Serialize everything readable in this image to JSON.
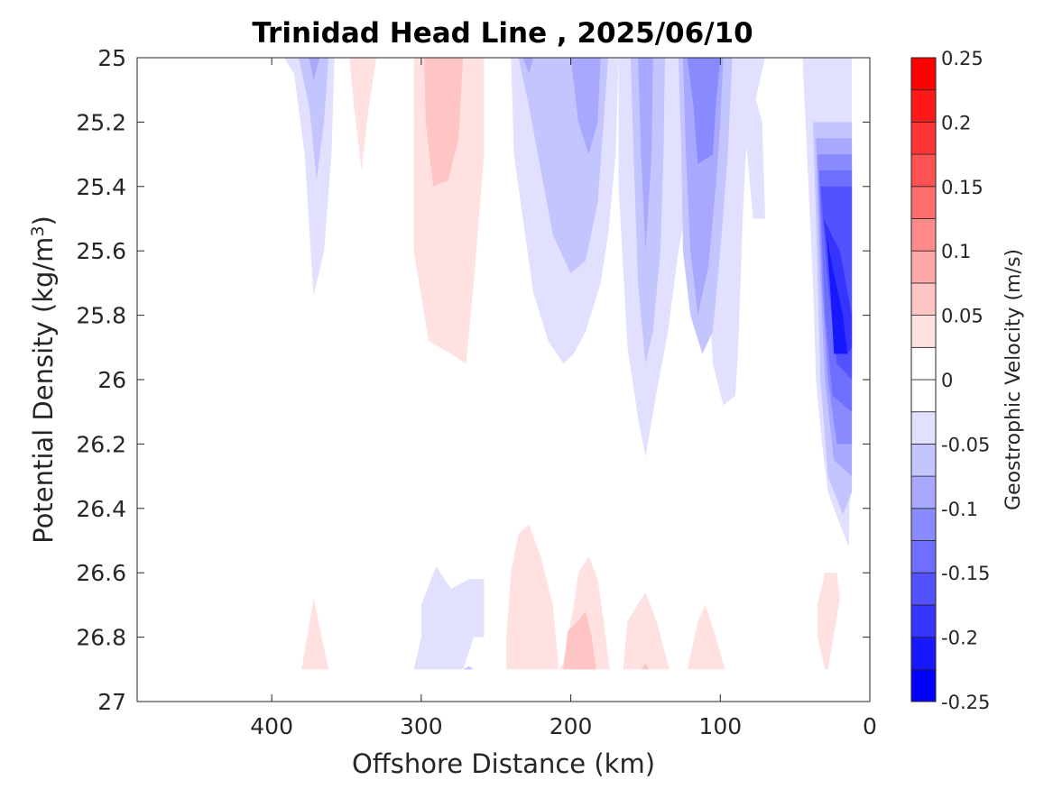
{
  "chart_data": {
    "type": "contour",
    "title": "Trinidad Head Line , 2025/06/10",
    "xlabel": "Offshore Distance (km)",
    "ylabel_main": "Potential Density (kg/m",
    "ylabel_sup": "3",
    "ylabel_end": ")",
    "colorbar_label": "Geostrophic Velocity (m/s)",
    "xlim": [
      490,
      0
    ],
    "x_reversed": true,
    "ylim": [
      25,
      27
    ],
    "y_reversed": true,
    "x_ticks": [
      400,
      300,
      200,
      100,
      0
    ],
    "x_tick_labels": [
      "400",
      "300",
      "200",
      "100",
      "0"
    ],
    "y_ticks": [
      25,
      25.2,
      25.4,
      25.6,
      25.8,
      26,
      26.2,
      26.4,
      26.6,
      26.8,
      27
    ],
    "y_tick_labels": [
      "25",
      "25.2",
      "25.4",
      "25.6",
      "25.8",
      "26",
      "26.2",
      "26.4",
      "26.6",
      "26.8",
      "27"
    ],
    "colorbar_levels": [
      -0.25,
      -0.225,
      -0.2,
      -0.175,
      -0.15,
      -0.125,
      -0.1,
      -0.075,
      -0.05,
      -0.025,
      0,
      0.025,
      0.05,
      0.075,
      0.1,
      0.125,
      0.15,
      0.175,
      0.2,
      0.225,
      0.25
    ],
    "colorbar_ticks": [
      0.25,
      0.2,
      0.15,
      0.1,
      0.05,
      0,
      -0.05,
      -0.1,
      -0.15,
      -0.2,
      -0.25
    ],
    "colorbar_tick_labels": [
      "0.25",
      "0.2",
      "0.15",
      "0.1",
      "0.05",
      "0",
      "-0.05",
      "-0.1",
      "-0.15",
      "-0.2",
      "-0.25"
    ],
    "colors": {
      "neg_1": "#e1e1ff",
      "neg_2": "#c4c4ff",
      "neg_3": "#a8a8ff",
      "neg_4": "#8a8aff",
      "neg_5": "#6e6eff",
      "neg_6": "#5252ff",
      "neg_7": "#3535ff",
      "neg_8": "#1818ff",
      "neg_9": "#0000ff",
      "pos_1": "#ffe1e1",
      "pos_2": "#ffc4c4",
      "pos_3": "#ffa8a8",
      "pos_4": "#ff8a8a",
      "pos_5": "#ff6e6e",
      "pos_6": "#ff5252",
      "pos_7": "#ff3535",
      "pos_8": "#ff1818",
      "pos_9": "#ff0000"
    },
    "regions": [
      {
        "level": "neg_1",
        "points": [
          [
            392,
            25.0
          ],
          [
            385,
            25.05
          ],
          [
            378,
            25.3
          ],
          [
            372,
            25.74
          ],
          [
            365,
            25.6
          ],
          [
            360,
            25.3
          ],
          [
            358,
            25.0
          ]
        ]
      },
      {
        "level": "neg_2",
        "points": [
          [
            382,
            25.0
          ],
          [
            375,
            25.15
          ],
          [
            370,
            25.38
          ],
          [
            365,
            25.2
          ],
          [
            362,
            25.0
          ]
        ]
      },
      {
        "level": "neg_3",
        "points": [
          [
            375,
            25.0
          ],
          [
            372,
            25.07
          ],
          [
            368,
            25.0
          ]
        ]
      },
      {
        "level": "pos_1",
        "points": [
          [
            348,
            25.0
          ],
          [
            345,
            25.15
          ],
          [
            340,
            25.35
          ],
          [
            335,
            25.15
          ],
          [
            330,
            25.0
          ]
        ]
      },
      {
        "level": "pos_1",
        "points": [
          [
            305,
            25.0
          ],
          [
            305,
            25.6
          ],
          [
            295,
            25.88
          ],
          [
            280,
            25.92
          ],
          [
            270,
            25.95
          ],
          [
            265,
            25.7
          ],
          [
            258,
            25.3
          ],
          [
            258,
            25.0
          ]
        ]
      },
      {
        "level": "pos_2",
        "points": [
          [
            298,
            25.0
          ],
          [
            297,
            25.2
          ],
          [
            292,
            25.4
          ],
          [
            282,
            25.38
          ],
          [
            275,
            25.25
          ],
          [
            272,
            25.0
          ]
        ]
      },
      {
        "level": "neg_1",
        "points": [
          [
            240,
            25.0
          ],
          [
            238,
            25.3
          ],
          [
            232,
            25.5
          ],
          [
            225,
            25.73
          ],
          [
            215,
            25.88
          ],
          [
            205,
            25.95
          ],
          [
            198,
            25.92
          ],
          [
            190,
            25.85
          ],
          [
            180,
            25.7
          ],
          [
            175,
            25.55
          ],
          [
            170,
            25.3
          ],
          [
            168,
            25.0
          ]
        ]
      },
      {
        "level": "neg_2",
        "points": [
          [
            235,
            25.0
          ],
          [
            228,
            25.15
          ],
          [
            220,
            25.35
          ],
          [
            212,
            25.55
          ],
          [
            200,
            25.67
          ],
          [
            190,
            25.63
          ],
          [
            182,
            25.45
          ],
          [
            178,
            25.2
          ],
          [
            175,
            25.0
          ]
        ]
      },
      {
        "level": "neg_3",
        "points": [
          [
            232,
            25.0
          ],
          [
            228,
            25.05
          ],
          [
            225,
            25.0
          ]
        ]
      },
      {
        "level": "neg_3",
        "points": [
          [
            200,
            25.0
          ],
          [
            195,
            25.2
          ],
          [
            188,
            25.3
          ],
          [
            182,
            25.2
          ],
          [
            180,
            25.0
          ]
        ]
      },
      {
        "level": "neg_1",
        "points": [
          [
            168,
            25.0
          ],
          [
            168,
            25.4
          ],
          [
            162,
            25.9
          ],
          [
            155,
            26.12
          ],
          [
            150,
            26.24
          ],
          [
            143,
            26.05
          ],
          [
            135,
            25.85
          ],
          [
            128,
            25.6
          ],
          [
            120,
            25.4
          ],
          [
            115,
            25.2
          ],
          [
            110,
            25.0
          ]
        ]
      },
      {
        "level": "neg_2",
        "points": [
          [
            160,
            25.0
          ],
          [
            158,
            25.3
          ],
          [
            155,
            25.7
          ],
          [
            150,
            25.95
          ],
          [
            145,
            25.85
          ],
          [
            140,
            25.6
          ],
          [
            138,
            25.3
          ],
          [
            137,
            25.0
          ]
        ]
      },
      {
        "level": "neg_3",
        "points": [
          [
            155,
            25.0
          ],
          [
            153,
            25.3
          ],
          [
            150,
            25.6
          ],
          [
            146,
            25.3
          ],
          [
            145,
            25.0
          ]
        ]
      },
      {
        "level": "neg_1",
        "points": [
          [
            112,
            25.0
          ],
          [
            110,
            25.3
          ],
          [
            108,
            25.7
          ],
          [
            105,
            25.95
          ],
          [
            98,
            26.08
          ],
          [
            90,
            26.05
          ],
          [
            88,
            25.9
          ],
          [
            85,
            25.5
          ],
          [
            83,
            25.3
          ],
          [
            75,
            25.1
          ],
          [
            70,
            25.0
          ]
        ]
      },
      {
        "level": "neg_1",
        "points": [
          [
            85,
            25.0
          ],
          [
            78,
            25.1
          ],
          [
            72,
            25.2
          ],
          [
            70,
            25.5
          ],
          [
            78,
            25.5
          ],
          [
            82,
            25.3
          ]
        ]
      },
      {
        "level": "neg_2",
        "points": [
          [
            128,
            25.0
          ],
          [
            126,
            25.3
          ],
          [
            125,
            25.6
          ],
          [
            120,
            25.8
          ],
          [
            112,
            25.92
          ],
          [
            105,
            25.85
          ],
          [
            100,
            25.6
          ],
          [
            95,
            25.3
          ],
          [
            92,
            25.0
          ]
        ]
      },
      {
        "level": "neg_3",
        "points": [
          [
            125,
            25.0
          ],
          [
            123,
            25.3
          ],
          [
            120,
            25.6
          ],
          [
            115,
            25.8
          ],
          [
            108,
            25.65
          ],
          [
            103,
            25.4
          ],
          [
            100,
            25.2
          ],
          [
            98,
            25.0
          ]
        ]
      },
      {
        "level": "neg_4",
        "points": [
          [
            122,
            25.0
          ],
          [
            118,
            25.15
          ],
          [
            115,
            25.33
          ],
          [
            105,
            25.3
          ],
          [
            103,
            25.15
          ],
          [
            100,
            25.0
          ]
        ]
      },
      {
        "level": "neg_1",
        "points": [
          [
            45,
            25.0
          ],
          [
            42,
            25.3
          ],
          [
            38,
            25.7
          ],
          [
            36,
            26.0
          ],
          [
            32,
            26.2
          ],
          [
            28,
            26.35
          ],
          [
            20,
            26.45
          ],
          [
            14,
            26.52
          ],
          [
            12,
            26.0
          ],
          [
            12,
            25.0
          ]
        ]
      },
      {
        "level": "neg_2",
        "points": [
          [
            38,
            25.2
          ],
          [
            36,
            25.5
          ],
          [
            33,
            26.0
          ],
          [
            28,
            26.3
          ],
          [
            18,
            26.42
          ],
          [
            12,
            26.35
          ],
          [
            12,
            25.2
          ]
        ]
      },
      {
        "level": "neg_3",
        "points": [
          [
            36,
            25.25
          ],
          [
            34,
            25.6
          ],
          [
            30,
            26.0
          ],
          [
            24,
            26.25
          ],
          [
            12,
            26.3
          ],
          [
            12,
            25.25
          ]
        ]
      },
      {
        "level": "neg_4",
        "points": [
          [
            35,
            25.3
          ],
          [
            32,
            25.7
          ],
          [
            28,
            26.0
          ],
          [
            22,
            26.2
          ],
          [
            12,
            26.2
          ],
          [
            12,
            25.3
          ]
        ]
      },
      {
        "level": "neg_5",
        "points": [
          [
            34,
            25.35
          ],
          [
            30,
            25.8
          ],
          [
            25,
            26.05
          ],
          [
            12,
            26.1
          ],
          [
            12,
            25.35
          ]
        ]
      },
      {
        "level": "neg_6",
        "points": [
          [
            33,
            25.4
          ],
          [
            28,
            25.7
          ],
          [
            22,
            25.95
          ],
          [
            12,
            26.0
          ],
          [
            12,
            25.4
          ]
        ]
      },
      {
        "level": "neg_7",
        "points": [
          [
            31,
            25.5
          ],
          [
            28,
            25.6
          ],
          [
            25,
            25.8
          ],
          [
            15,
            25.92
          ],
          [
            12,
            25.9
          ],
          [
            12,
            25.8
          ],
          [
            20,
            25.6
          ]
        ]
      },
      {
        "level": "neg_8",
        "points": [
          [
            29,
            25.55
          ],
          [
            25,
            25.65
          ],
          [
            18,
            25.8
          ],
          [
            15,
            25.92
          ],
          [
            24,
            25.92
          ],
          [
            26,
            25.75
          ]
        ]
      },
      {
        "level": "pos_1",
        "points": [
          [
            380,
            26.9
          ],
          [
            372,
            26.68
          ],
          [
            362,
            26.9
          ]
        ]
      },
      {
        "level": "neg_1",
        "points": [
          [
            305,
            26.9
          ],
          [
            300,
            26.8
          ],
          [
            300,
            26.7
          ],
          [
            290,
            26.58
          ],
          [
            280,
            26.65
          ],
          [
            268,
            26.62
          ],
          [
            258,
            26.62
          ],
          [
            258,
            26.8
          ],
          [
            265,
            26.8
          ],
          [
            272,
            26.9
          ]
        ]
      },
      {
        "level": "neg_2",
        "points": [
          [
            272,
            26.9
          ],
          [
            268,
            26.89
          ],
          [
            265,
            26.9
          ]
        ]
      },
      {
        "level": "pos_1",
        "points": [
          [
            243,
            26.9
          ],
          [
            243,
            26.8
          ],
          [
            240,
            26.6
          ],
          [
            235,
            26.48
          ],
          [
            228,
            26.45
          ],
          [
            220,
            26.55
          ],
          [
            212,
            26.7
          ],
          [
            210,
            26.8
          ],
          [
            208,
            26.9
          ],
          [
            205,
            26.88
          ],
          [
            202,
            26.8
          ],
          [
            198,
            26.7
          ],
          [
            195,
            26.6
          ],
          [
            188,
            26.55
          ],
          [
            182,
            26.62
          ],
          [
            178,
            26.75
          ],
          [
            174,
            26.9
          ]
        ]
      },
      {
        "level": "pos_2",
        "points": [
          [
            205,
            26.9
          ],
          [
            202,
            26.78
          ],
          [
            195,
            26.75
          ],
          [
            190,
            26.72
          ],
          [
            186,
            26.8
          ],
          [
            183,
            26.9
          ]
        ]
      },
      {
        "level": "pos_1",
        "points": [
          [
            165,
            26.9
          ],
          [
            162,
            26.75
          ],
          [
            150,
            26.66
          ],
          [
            142,
            26.76
          ],
          [
            137,
            26.85
          ],
          [
            134,
            26.9
          ]
        ]
      },
      {
        "level": "pos_2",
        "points": [
          [
            153,
            26.9
          ],
          [
            150,
            26.88
          ],
          [
            148,
            26.9
          ]
        ]
      },
      {
        "level": "pos_1",
        "points": [
          [
            122,
            26.9
          ],
          [
            115,
            26.75
          ],
          [
            110,
            26.7
          ],
          [
            103,
            26.8
          ],
          [
            97,
            26.9
          ]
        ]
      },
      {
        "level": "pos_1",
        "points": [
          [
            30,
            26.9
          ],
          [
            35,
            26.8
          ],
          [
            35,
            26.7
          ],
          [
            30,
            26.6
          ],
          [
            22,
            26.6
          ],
          [
            20,
            26.68
          ],
          [
            28,
            26.9
          ]
        ]
      }
    ]
  }
}
